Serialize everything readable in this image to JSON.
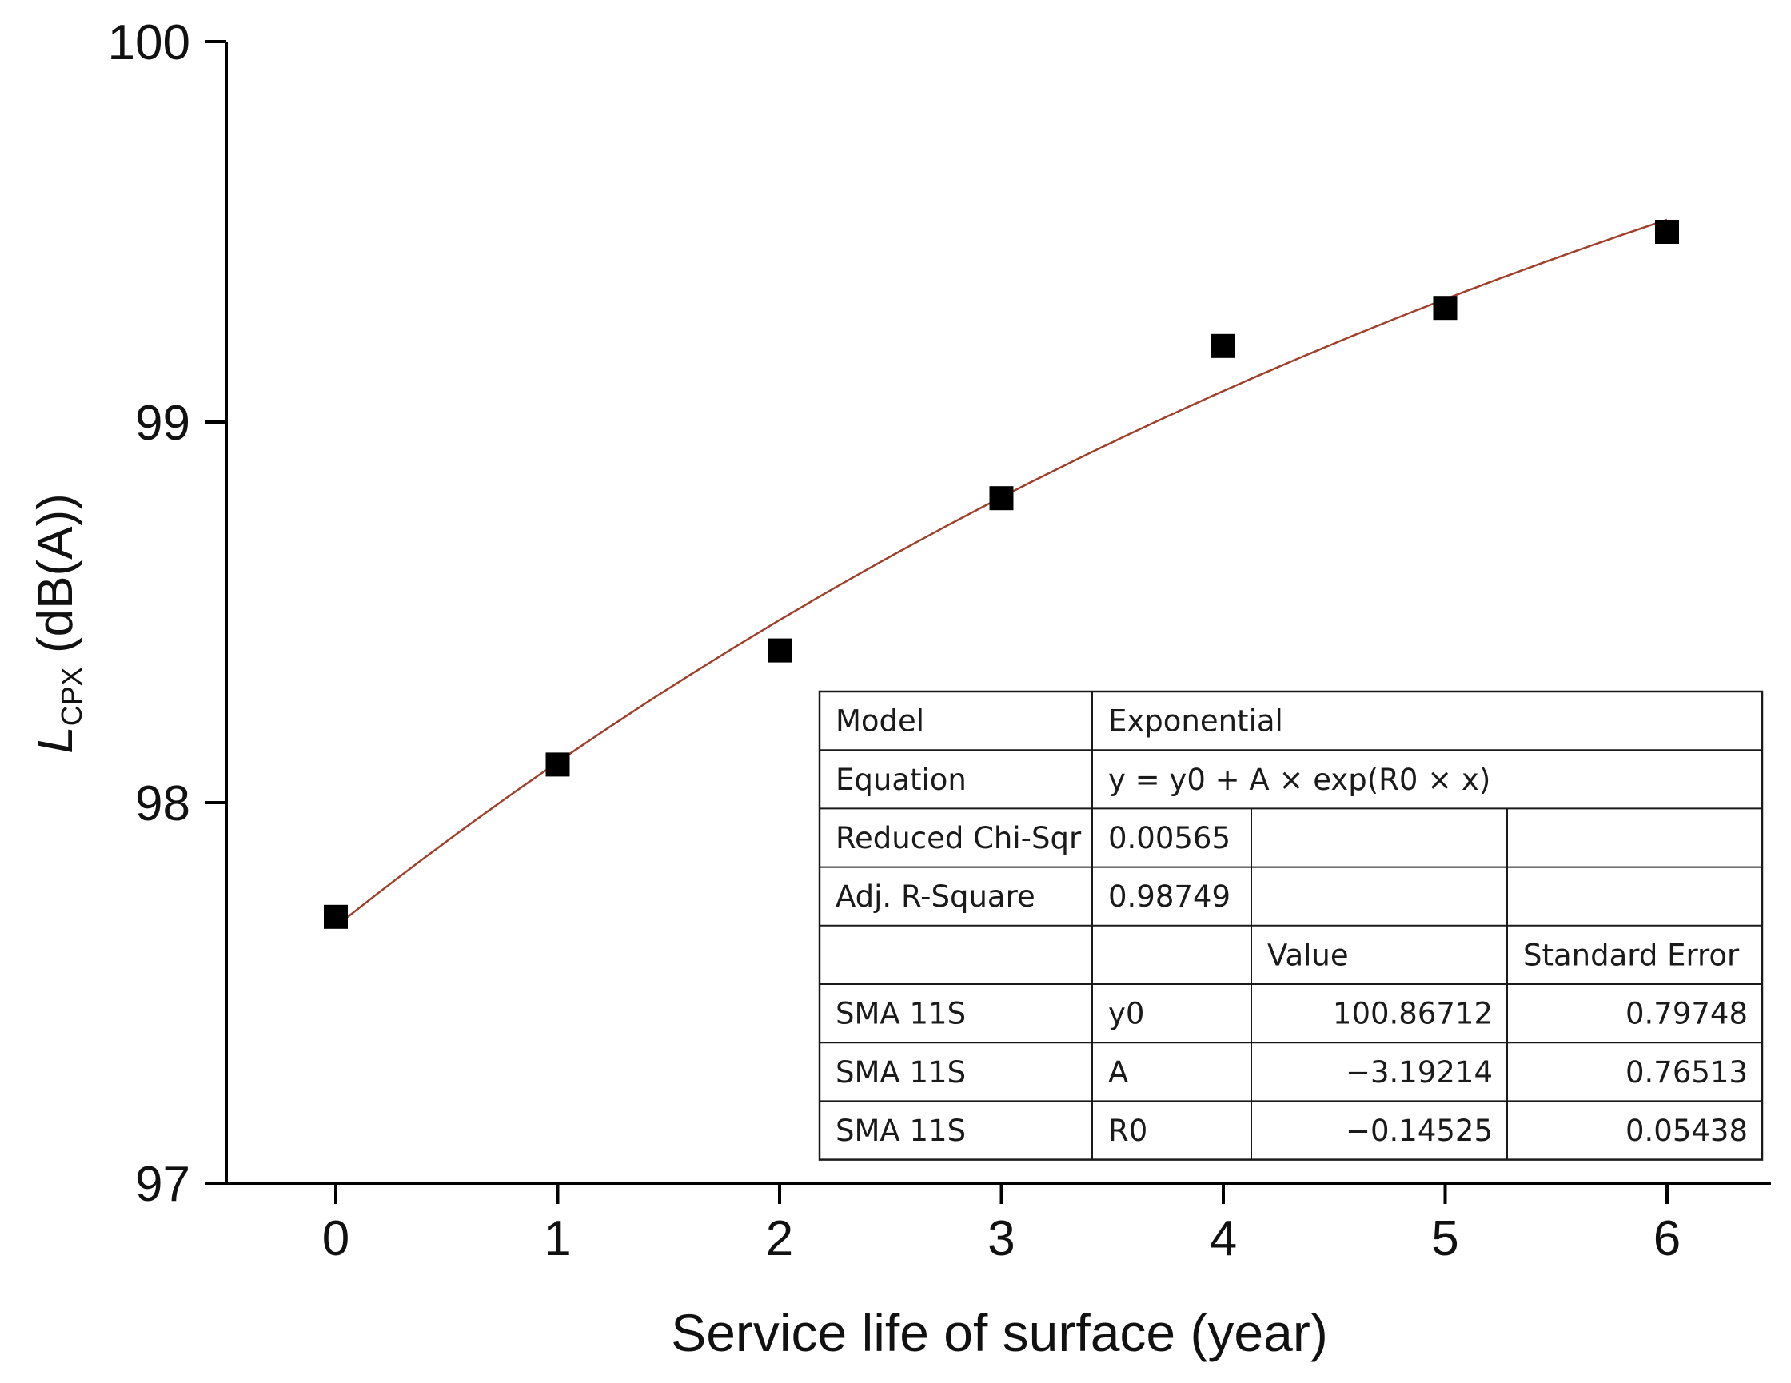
{
  "chart_data": {
    "type": "scatter",
    "title": "",
    "xlabel": "Service life of surface (year)",
    "ylabel": {
      "symbol": "L",
      "subscript": "CPX",
      "unit": " (dB(A))"
    },
    "xlim": [
      -0.6,
      6.5
    ],
    "ylim": [
      97,
      100
    ],
    "xticks": [
      "0",
      "1",
      "2",
      "3",
      "4",
      "5",
      "6"
    ],
    "yticks": [
      "97",
      "98",
      "99",
      "100"
    ],
    "grid": false,
    "series": [
      {
        "name": "SMA 11S",
        "marker": "square",
        "color": "#000000",
        "x": [
          0,
          1,
          2,
          3,
          4,
          5,
          6
        ],
        "y": [
          97.7,
          98.1,
          98.4,
          98.8,
          99.2,
          99.3,
          99.5
        ]
      }
    ],
    "fit": {
      "model": "Exponential",
      "equation": "y = y0 + A × exp(R0 × x)",
      "y0": 100.86712,
      "A": -3.19214,
      "R0": -0.14525,
      "x_range": [
        0,
        6
      ],
      "color": "#a0402a"
    },
    "fit_table": {
      "placement": "bottom-right",
      "rows": [
        [
          "Model",
          "Exponential"
        ],
        [
          "Equation",
          "y = y0 + A × exp(R0 × x)"
        ],
        [
          "Reduced Chi-Sqr",
          "0.00565",
          "",
          ""
        ],
        [
          "Adj. R-Square",
          "0.98749",
          "",
          ""
        ],
        [
          "",
          "",
          "Value",
          "Standard Error"
        ],
        [
          "SMA 11S",
          "y0",
          "100.86712",
          "0.79748"
        ],
        [
          "SMA 11S",
          "A",
          "−3.19214",
          "0.76513"
        ],
        [
          "SMA 11S",
          "R0",
          "−0.14525",
          "0.05438"
        ]
      ]
    }
  }
}
